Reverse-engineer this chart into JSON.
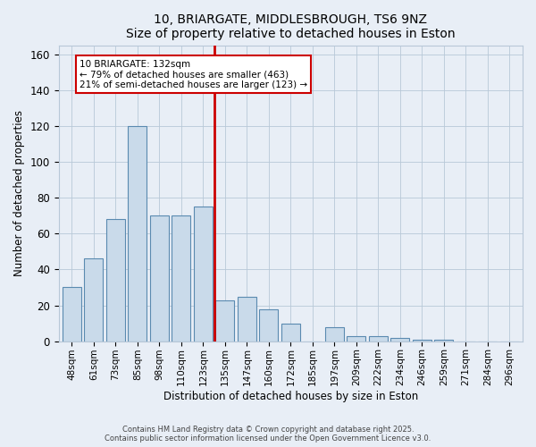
{
  "title": "10, BRIARGATE, MIDDLESBROUGH, TS6 9NZ",
  "subtitle": "Size of property relative to detached houses in Eston",
  "xlabel": "Distribution of detached houses by size in Eston",
  "ylabel": "Number of detached properties",
  "annotation_line1": "10 BRIARGATE: 132sqm",
  "annotation_line2": "← 79% of detached houses are smaller (463)",
  "annotation_line3": "21% of semi-detached houses are larger (123) →",
  "bar_color": "#c9daea",
  "bar_edge_color": "#5a8ab0",
  "red_line_color": "#cc0000",
  "background_color": "#e8eef6",
  "grid_color": "#b8c8d8",
  "categories": [
    "48sqm",
    "61sqm",
    "73sqm",
    "85sqm",
    "98sqm",
    "110sqm",
    "123sqm",
    "135sqm",
    "147sqm",
    "160sqm",
    "172sqm",
    "185sqm",
    "197sqm",
    "209sqm",
    "222sqm",
    "234sqm",
    "246sqm",
    "259sqm",
    "271sqm",
    "284sqm",
    "296sqm"
  ],
  "values": [
    30,
    46,
    68,
    120,
    70,
    70,
    75,
    23,
    25,
    18,
    10,
    0,
    8,
    3,
    3,
    2,
    1,
    1,
    0,
    0,
    0
  ],
  "red_line_x": 6.5,
  "ylim": [
    0,
    165
  ],
  "yticks": [
    0,
    20,
    40,
    60,
    80,
    100,
    120,
    140,
    160
  ],
  "footer_line1": "Contains HM Land Registry data © Crown copyright and database right 2025.",
  "footer_line2": "Contains public sector information licensed under the Open Government Licence v3.0."
}
